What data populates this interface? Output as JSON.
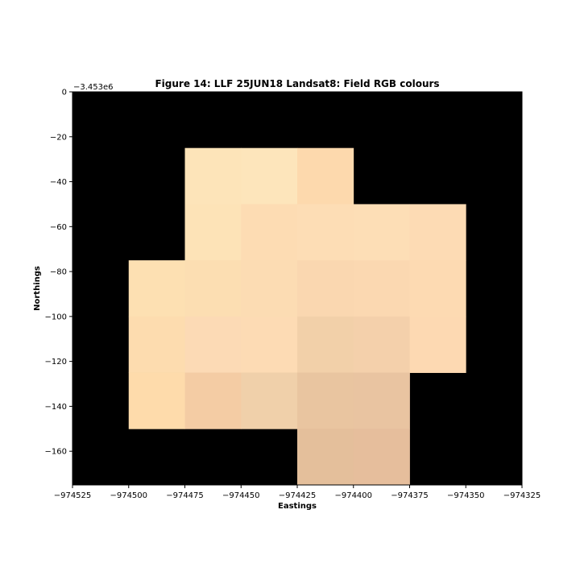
{
  "chart_data": {
    "type": "heatmap",
    "title": "Figure 14: LLF 25JUN18  Landsat8: Field RGB colours",
    "xlabel": "Eastings",
    "ylabel": "Northings",
    "y_offset_label": "−3.453e6",
    "xlim": [
      -974525,
      -974325
    ],
    "ylim": [
      -175,
      0
    ],
    "grid": false,
    "background_color": "#000000",
    "x_ticks": [
      -974525,
      -974500,
      -974475,
      -974450,
      -974425,
      -974400,
      -974375,
      -974350,
      -974325
    ],
    "x_tick_labels": [
      "−974525",
      "−974500",
      "−974475",
      "−974450",
      "−974425",
      "−974400",
      "−974375",
      "−974350",
      "−974325"
    ],
    "y_ticks": [
      0,
      -20,
      -40,
      -60,
      -80,
      -100,
      -120,
      -140,
      -160
    ],
    "y_tick_labels": [
      "0",
      "−20",
      "−40",
      "−60",
      "−80",
      "−100",
      "−120",
      "−140",
      "−160"
    ],
    "cell_size": 25,
    "cells": [
      {
        "x": -974475,
        "y": -25,
        "color": "#fde4b9"
      },
      {
        "x": -974450,
        "y": -25,
        "color": "#fde5bb"
      },
      {
        "x": -974425,
        "y": -25,
        "color": "#fdd9ad"
      },
      {
        "x": -974475,
        "y": -50,
        "color": "#fde3b7"
      },
      {
        "x": -974450,
        "y": -50,
        "color": "#fddcb3"
      },
      {
        "x": -974425,
        "y": -50,
        "color": "#fdddb5"
      },
      {
        "x": -974400,
        "y": -50,
        "color": "#fddeb6"
      },
      {
        "x": -974375,
        "y": -50,
        "color": "#fddbb4"
      },
      {
        "x": -974500,
        "y": -75,
        "color": "#fde0b2"
      },
      {
        "x": -974475,
        "y": -75,
        "color": "#fcdeb2"
      },
      {
        "x": -974450,
        "y": -75,
        "color": "#fcdcb3"
      },
      {
        "x": -974425,
        "y": -75,
        "color": "#fad7b0"
      },
      {
        "x": -974400,
        "y": -75,
        "color": "#fbd8b1"
      },
      {
        "x": -974375,
        "y": -75,
        "color": "#fddab2"
      },
      {
        "x": -974500,
        "y": -100,
        "color": "#fddcaf"
      },
      {
        "x": -974475,
        "y": -100,
        "color": "#fcdab5"
      },
      {
        "x": -974450,
        "y": -100,
        "color": "#fddbb4"
      },
      {
        "x": -974425,
        "y": -100,
        "color": "#f2d0a9"
      },
      {
        "x": -974400,
        "y": -100,
        "color": "#f4d0ab"
      },
      {
        "x": -974375,
        "y": -100,
        "color": "#fdd9b2"
      },
      {
        "x": -974500,
        "y": -125,
        "color": "#fedbab"
      },
      {
        "x": -974475,
        "y": -125,
        "color": "#f4cca4"
      },
      {
        "x": -974450,
        "y": -125,
        "color": "#f0d0aa"
      },
      {
        "x": -974425,
        "y": -125,
        "color": "#e9c5a0"
      },
      {
        "x": -974400,
        "y": -125,
        "color": "#e9c4a1"
      },
      {
        "x": -974425,
        "y": -150,
        "color": "#e4bf9b"
      },
      {
        "x": -974400,
        "y": -150,
        "color": "#e6be9c"
      }
    ]
  }
}
